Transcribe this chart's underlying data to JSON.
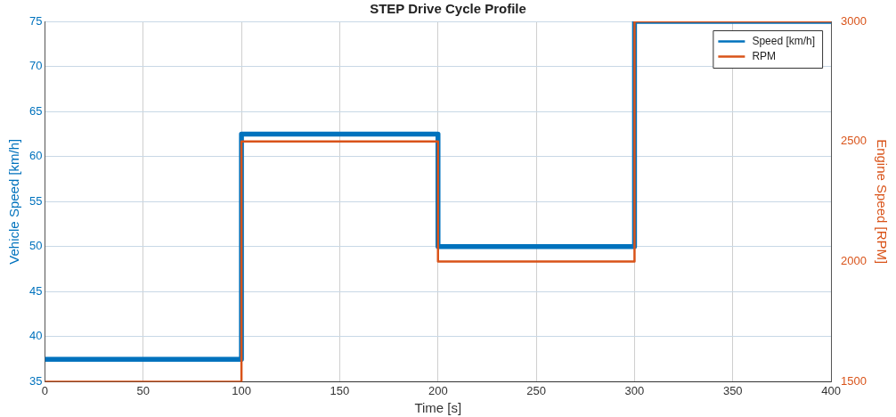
{
  "chart_data": {
    "type": "step",
    "title": "STEP Drive Cycle Profile",
    "xlabel": "Time [s]",
    "ylabel": "Vehicle Speed [km/h]",
    "y2label": "Engine Speed [RPM]",
    "x": [
      0,
      100,
      200,
      300,
      400
    ],
    "series": [
      {
        "name": "Speed [km/h]",
        "color": "#0072bd",
        "values": [
          37.5,
          62.5,
          50,
          75,
          75
        ]
      },
      {
        "name": "RPM",
        "color": "#d95319",
        "axis": "y2",
        "values": [
          1500,
          2500,
          2000,
          3000,
          3000
        ]
      }
    ],
    "xlim": [
      0,
      400
    ],
    "xticks": [
      0,
      50,
      100,
      150,
      200,
      250,
      300,
      350,
      400
    ],
    "ylim": [
      35,
      75
    ],
    "yticks": [
      35,
      40,
      45,
      50,
      55,
      60,
      65,
      70,
      75
    ],
    "y2lim": [
      1500,
      3000
    ],
    "y2ticks": [
      1500,
      2000,
      2500,
      3000
    ],
    "grid": true,
    "legend": "top right",
    "marker": "none",
    "line_style": "solid"
  }
}
